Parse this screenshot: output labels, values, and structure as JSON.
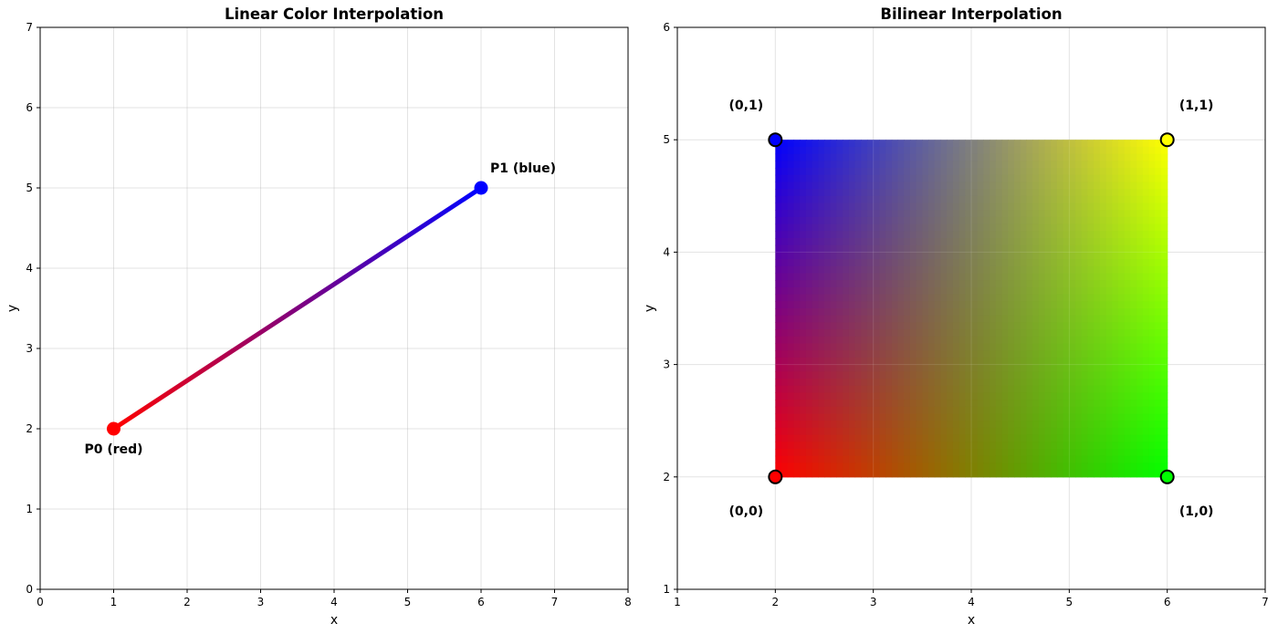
{
  "chart_data": [
    {
      "type": "line",
      "title": "Linear Color Interpolation",
      "xlabel": "x",
      "ylabel": "y",
      "xlim": [
        0,
        8
      ],
      "ylim": [
        0,
        7
      ],
      "xticks": [
        "0",
        "1",
        "2",
        "3",
        "4",
        "5",
        "6",
        "7",
        "8"
      ],
      "yticks": [
        "0",
        "1",
        "2",
        "3",
        "4",
        "5",
        "6",
        "7"
      ],
      "grid": true,
      "series": [
        {
          "x": [
            1,
            6
          ],
          "y": [
            2,
            5
          ],
          "color_start": "#ff0000",
          "color_end": "#0000ff"
        }
      ],
      "points": [
        {
          "x": 1,
          "y": 2,
          "label": "P0 (red)",
          "color": "#ff0000"
        },
        {
          "x": 6,
          "y": 5,
          "label": "P1 (blue)",
          "color": "#0000ff"
        }
      ]
    },
    {
      "type": "heatmap",
      "title": "Bilinear Interpolation",
      "xlabel": "x",
      "ylabel": "y",
      "xlim": [
        1,
        7
      ],
      "ylim": [
        1,
        6
      ],
      "xticks": [
        "1",
        "2",
        "3",
        "4",
        "5",
        "6",
        "7"
      ],
      "yticks": [
        "1",
        "2",
        "3",
        "4",
        "5",
        "6"
      ],
      "grid": true,
      "region": {
        "x": [
          2,
          6
        ],
        "y": [
          2,
          5
        ]
      },
      "corners": [
        {
          "x": 2,
          "y": 2,
          "label": "(0,0)",
          "color": "#ff0000"
        },
        {
          "x": 6,
          "y": 2,
          "label": "(1,0)",
          "color": "#00ff00"
        },
        {
          "x": 2,
          "y": 5,
          "label": "(0,1)",
          "color": "#0000ff"
        },
        {
          "x": 6,
          "y": 5,
          "label": "(1,1)",
          "color": "#ffff00"
        }
      ]
    }
  ]
}
